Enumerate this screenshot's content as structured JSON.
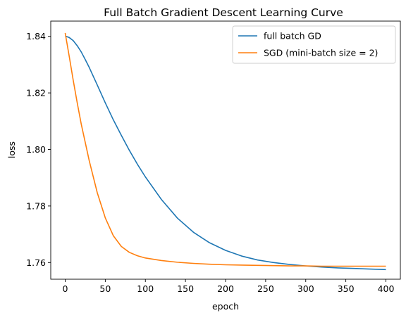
{
  "chart_data": {
    "type": "line",
    "title": "Full Batch Gradient Descent Learning Curve",
    "xlabel": "epoch",
    "ylabel": "loss",
    "xlim": [
      -18,
      418
    ],
    "ylim": [
      1.7541,
      1.8454
    ],
    "xticks": [
      0,
      50,
      100,
      150,
      200,
      250,
      300,
      350,
      400
    ],
    "yticks": [
      1.76,
      1.78,
      1.8,
      1.82,
      1.84
    ],
    "ytick_labels": [
      "1.76",
      "1.78",
      "1.80",
      "1.82",
      "1.84"
    ],
    "grid": false,
    "legend_position": "top-right",
    "x": [
      0,
      5,
      10,
      15,
      20,
      25,
      30,
      40,
      50,
      60,
      70,
      80,
      90,
      100,
      120,
      140,
      160,
      180,
      200,
      220,
      240,
      260,
      280,
      300,
      320,
      340,
      360,
      380,
      400
    ],
    "series": [
      {
        "name": "full batch GD",
        "color": "#1f77b4",
        "values": [
          1.8401,
          1.8396,
          1.8385,
          1.8367,
          1.8345,
          1.8318,
          1.829,
          1.8228,
          1.8165,
          1.8105,
          1.805,
          1.7997,
          1.7948,
          1.7903,
          1.7823,
          1.7757,
          1.7707,
          1.767,
          1.7643,
          1.7623,
          1.7609,
          1.76,
          1.7593,
          1.7588,
          1.7584,
          1.7581,
          1.7579,
          1.7577,
          1.7575
        ]
      },
      {
        "name": "SGD (mini-batch size = 2)",
        "color": "#ff7f0e",
        "values": [
          1.8412,
          1.833,
          1.8245,
          1.8165,
          1.809,
          1.8025,
          1.796,
          1.7847,
          1.7758,
          1.7695,
          1.7657,
          1.7636,
          1.7624,
          1.7616,
          1.7607,
          1.7601,
          1.7597,
          1.7594,
          1.7592,
          1.7591,
          1.759,
          1.7589,
          1.7588,
          1.7588,
          1.7587,
          1.7587,
          1.7587,
          1.7587,
          1.7587
        ]
      }
    ]
  }
}
